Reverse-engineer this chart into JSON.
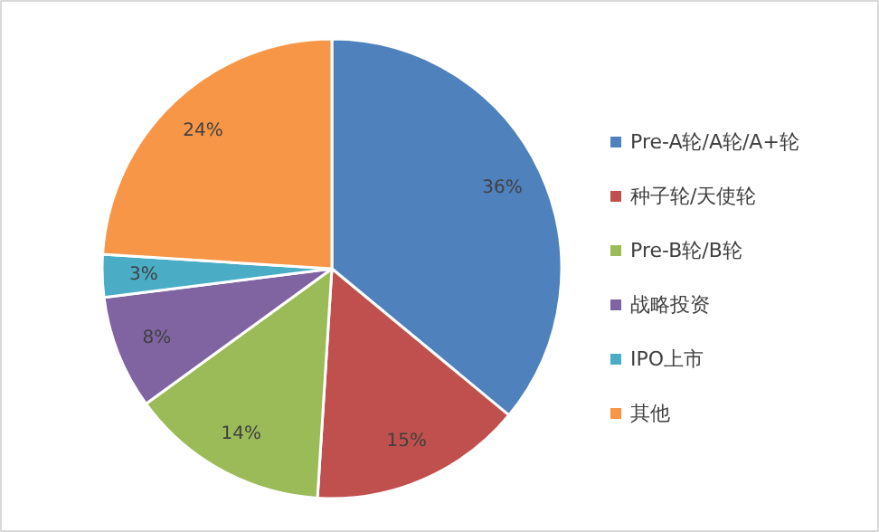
{
  "chart_data": {
    "type": "pie",
    "categories": [
      "Pre-A轮/A轮/A+轮",
      "种子轮/天使轮",
      "Pre-B轮/B轮",
      "战略投资",
      "IPO上市",
      "其他"
    ],
    "values": [
      36,
      15,
      14,
      8,
      3,
      24
    ],
    "colors": [
      "#4f81bd",
      "#c0504d",
      "#9bbb59",
      "#8064a2",
      "#4bacc6",
      "#f79646"
    ],
    "value_labels": [
      "36%",
      "15%",
      "14%",
      "8%",
      "3%",
      "24%"
    ],
    "legend": "right"
  }
}
